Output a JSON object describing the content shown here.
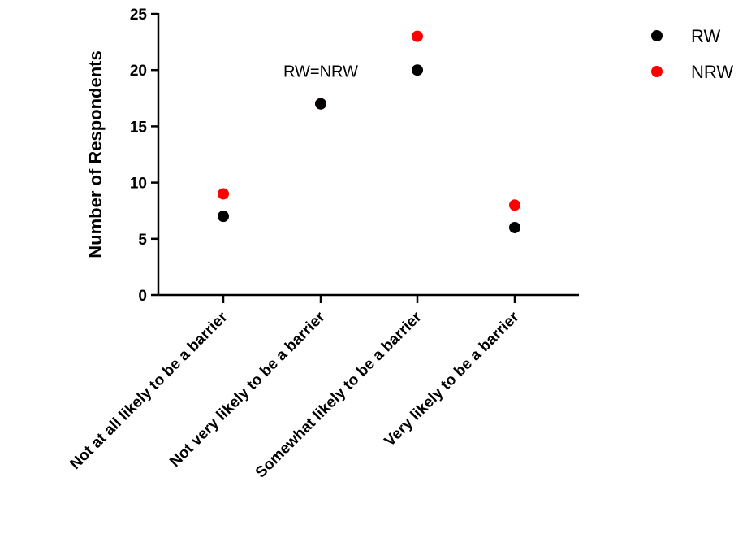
{
  "chart_data": {
    "type": "scatter",
    "title": "",
    "xlabel": "",
    "ylabel": "Number of Respondents",
    "categories": [
      "Not at all likely to be a barrier",
      "Not very likely to be a barrier",
      "Somewhat likely to be a barrier",
      "Very likely to be a barrier"
    ],
    "series": [
      {
        "name": "RW",
        "color": "#000000",
        "values": [
          7,
          17,
          20,
          6
        ]
      },
      {
        "name": "NRW",
        "color": "#ff0000",
        "values": [
          9,
          17,
          23,
          8
        ]
      }
    ],
    "ylim": [
      0,
      25
    ],
    "yticks": [
      0,
      5,
      10,
      15,
      20,
      25
    ],
    "grid": false,
    "legend": "top-right",
    "annotations": [
      {
        "text": "RW=NRW",
        "category_index": 1
      }
    ]
  }
}
